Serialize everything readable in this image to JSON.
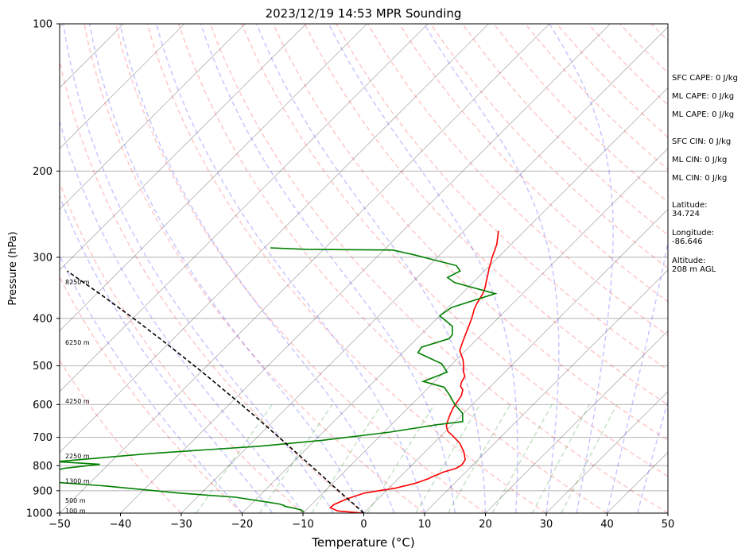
{
  "chart_data": {
    "type": "line",
    "title": "2023/12/19 14:53 MPR Sounding",
    "xlabel": "Temperature (°C)",
    "ylabel": "Pressure (hPa)",
    "xlim": [
      -50,
      50
    ],
    "ylim": [
      1000,
      100
    ],
    "y_scale": "log",
    "grid": true,
    "x_ticks": [
      -50,
      -40,
      -30,
      -20,
      -10,
      0,
      10,
      20,
      30,
      40,
      50
    ],
    "x_tick_labels": [
      "−50",
      "−40",
      "−30",
      "−20",
      "−10",
      "0",
      "10",
      "20",
      "30",
      "40",
      "50"
    ],
    "y_ticks": [
      1000,
      900,
      800,
      700,
      600,
      500,
      400,
      300,
      200,
      100
    ],
    "y_tick_labels": [
      "1000",
      "900",
      "800",
      "700",
      "600",
      "500",
      "400",
      "300",
      "200",
      "100"
    ],
    "skew": true,
    "series": [
      {
        "role": "temperature",
        "color": "#ff0000",
        "points": [
          [
            0.0,
            1000
          ],
          [
            -4.6,
            990
          ],
          [
            -6.4,
            975
          ],
          [
            -6.3,
            960
          ],
          [
            -5.1,
            935
          ],
          [
            -3.2,
            910
          ],
          [
            -1.2,
            900
          ],
          [
            1.0,
            890
          ],
          [
            3.5,
            870
          ],
          [
            5.0,
            850
          ],
          [
            5.2,
            845
          ],
          [
            6.3,
            825
          ],
          [
            7.8,
            810
          ],
          [
            8.2,
            798
          ],
          [
            7.9,
            778
          ],
          [
            6.4,
            750
          ],
          [
            4.3,
            720
          ],
          [
            1.9,
            695
          ],
          [
            0.3,
            680
          ],
          [
            -0.8,
            663
          ],
          [
            -1.3,
            650
          ],
          [
            -2.0,
            630
          ],
          [
            -2.6,
            610
          ],
          [
            -3.0,
            590
          ],
          [
            -3.3,
            575
          ],
          [
            -4.0,
            560
          ],
          [
            -5.0,
            550
          ],
          [
            -5.5,
            540
          ],
          [
            -5.9,
            525
          ],
          [
            -6.8,
            515
          ],
          [
            -7.5,
            505
          ],
          [
            -8.2,
            495
          ],
          [
            -9.0,
            485
          ],
          [
            -10.0,
            475
          ],
          [
            -11.0,
            465
          ],
          [
            -11.5,
            455
          ],
          [
            -12.0,
            445
          ],
          [
            -12.5,
            435
          ],
          [
            -13.0,
            425
          ],
          [
            -13.5,
            415
          ],
          [
            -14.2,
            402
          ],
          [
            -14.8,
            392
          ],
          [
            -15.4,
            383
          ],
          [
            -15.9,
            373
          ],
          [
            -16.2,
            365
          ],
          [
            -16.5,
            357
          ],
          [
            -16.9,
            350
          ],
          [
            -17.4,
            343
          ],
          [
            -18.0,
            336
          ],
          [
            -18.8,
            326
          ],
          [
            -19.6,
            317
          ],
          [
            -20.4,
            307
          ],
          [
            -21.0,
            300
          ],
          [
            -21.6,
            292
          ],
          [
            -22.4,
            282
          ],
          [
            -23.5,
            272
          ],
          [
            -24.3,
            265
          ]
        ]
      },
      {
        "role": "dewpoint",
        "color": "#008000",
        "points": [
          [
            -10.0,
            995
          ],
          [
            -10.8,
            985
          ],
          [
            -12.7,
            975
          ],
          [
            -14.2,
            968
          ],
          [
            -14.3,
            965
          ],
          [
            -15.4,
            958
          ],
          [
            -18.1,
            948
          ],
          [
            -23.7,
            928
          ],
          [
            -33.6,
            910
          ],
          [
            -47.0,
            880
          ],
          [
            -58.6,
            860
          ],
          [
            -62.6,
            852
          ],
          [
            -56.6,
            810
          ],
          [
            -51.4,
            795
          ],
          [
            -59.0,
            785
          ],
          [
            -44.6,
            755
          ],
          [
            -28.2,
            730
          ],
          [
            -18.9,
            710
          ],
          [
            -9.0,
            683
          ],
          [
            -2.6,
            660
          ],
          [
            1.2,
            650
          ],
          [
            -0.2,
            625
          ],
          [
            -2.9,
            600
          ],
          [
            -5.2,
            575
          ],
          [
            -7.5,
            553
          ],
          [
            -11.9,
            538
          ],
          [
            -9.5,
            515
          ],
          [
            -11.8,
            495
          ],
          [
            -17.5,
            470
          ],
          [
            -17.8,
            458
          ],
          [
            -14.7,
            440
          ],
          [
            -14.8,
            432
          ],
          [
            -16.2,
            415
          ],
          [
            -20.0,
            395
          ],
          [
            -19.4,
            380
          ],
          [
            -14.5,
            356
          ],
          [
            -23.0,
            338
          ],
          [
            -25.0,
            330
          ],
          [
            -24.0,
            320
          ],
          [
            -25.5,
            312
          ],
          [
            -34.0,
            297
          ],
          [
            -38.5,
            290
          ],
          [
            -53.0,
            289
          ],
          [
            -59.0,
            287
          ]
        ]
      },
      {
        "role": "parcel",
        "color": "#000000",
        "style": "dashed",
        "points": [
          [
            0.0,
            1000
          ],
          [
            -3.0,
            960
          ],
          [
            -6.2,
            920
          ],
          [
            -9.5,
            880
          ],
          [
            -12.9,
            840
          ],
          [
            -16.5,
            800
          ],
          [
            -20.3,
            760
          ],
          [
            -24.3,
            720
          ],
          [
            -28.6,
            680
          ],
          [
            -33.1,
            640
          ],
          [
            -38.0,
            600
          ],
          [
            -43.3,
            560
          ],
          [
            -49.0,
            520
          ],
          [
            -55.3,
            480
          ],
          [
            -62.2,
            440
          ],
          [
            -69.9,
            400
          ],
          [
            -78.6,
            360
          ],
          [
            -88.6,
            320
          ]
        ]
      }
    ],
    "height_labels": [
      {
        "text": "100 m",
        "p": 988
      },
      {
        "text": "500 m",
        "p": 942
      },
      {
        "text": "1300 m",
        "p": 859
      },
      {
        "text": "2250 m",
        "p": 764
      },
      {
        "text": "4250 m",
        "p": 590
      },
      {
        "text": "6250 m",
        "p": 448
      },
      {
        "text": "8250 m",
        "p": 337
      }
    ]
  },
  "sidebar": {
    "sfc_cape": "SFC CAPE: 0 J/kg",
    "ml_cape_1": "ML CAPE: 0 J/kg",
    "ml_cape_2": "ML CAPE: 0 J/kg",
    "sfc_cin": "SFC CIN: 0 J/kg",
    "ml_cin_1": "ML CIN: 0 J/kg",
    "ml_cin_2": "ML CIN: 0 J/kg",
    "latitude": "Latitude:\n34.724",
    "longitude": "Longitude:\n-86.646",
    "altitude": "Altitude:\n208 m AGL"
  },
  "colors": {
    "dry_adiabat": "#ff0000",
    "moist_adiabat": "#0000ff",
    "mixing_ratio": "#008000",
    "isotherm": "#000000",
    "isobar": "#000000"
  }
}
